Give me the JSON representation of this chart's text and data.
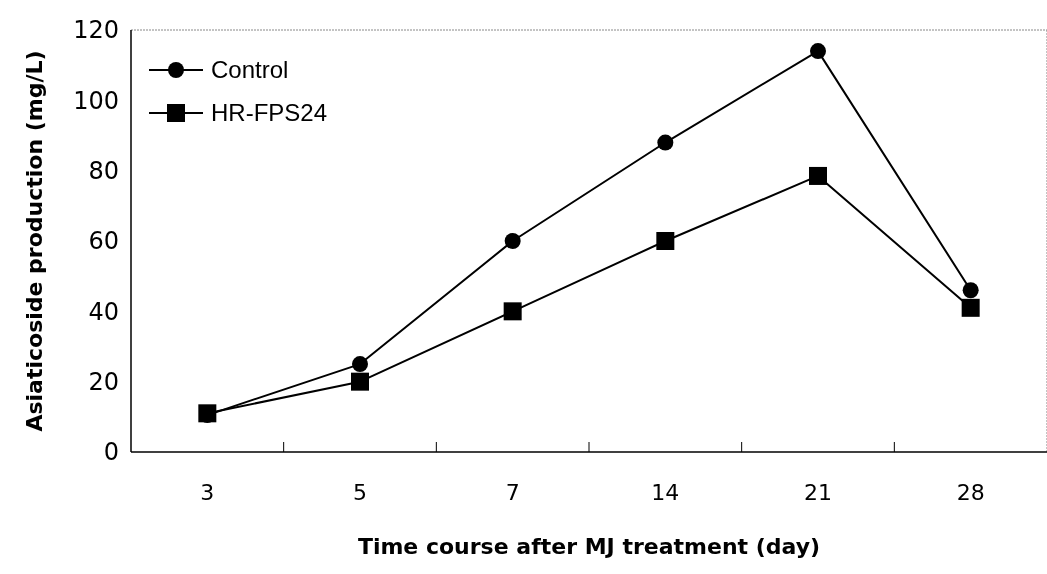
{
  "chart_data": {
    "type": "line",
    "xlabel": "Time course after MJ treatment (day)",
    "ylabel": "Asiaticoside production (mg/L)",
    "categories": [
      "3",
      "5",
      "7",
      "14",
      "21",
      "28"
    ],
    "series": [
      {
        "name": "Control",
        "color": "#000000",
        "marker": "circle",
        "values": [
          10.5,
          25,
          60,
          88,
          114,
          46
        ]
      },
      {
        "name": "HR-FPS24",
        "color": "#000000",
        "marker": "square",
        "values": [
          11,
          20,
          40,
          60,
          78.5,
          41
        ]
      }
    ],
    "ylim": [
      0,
      120
    ],
    "yticks": [
      0,
      20,
      40,
      60,
      80,
      100,
      120
    ],
    "legend": "top left",
    "line_style": "solid"
  }
}
